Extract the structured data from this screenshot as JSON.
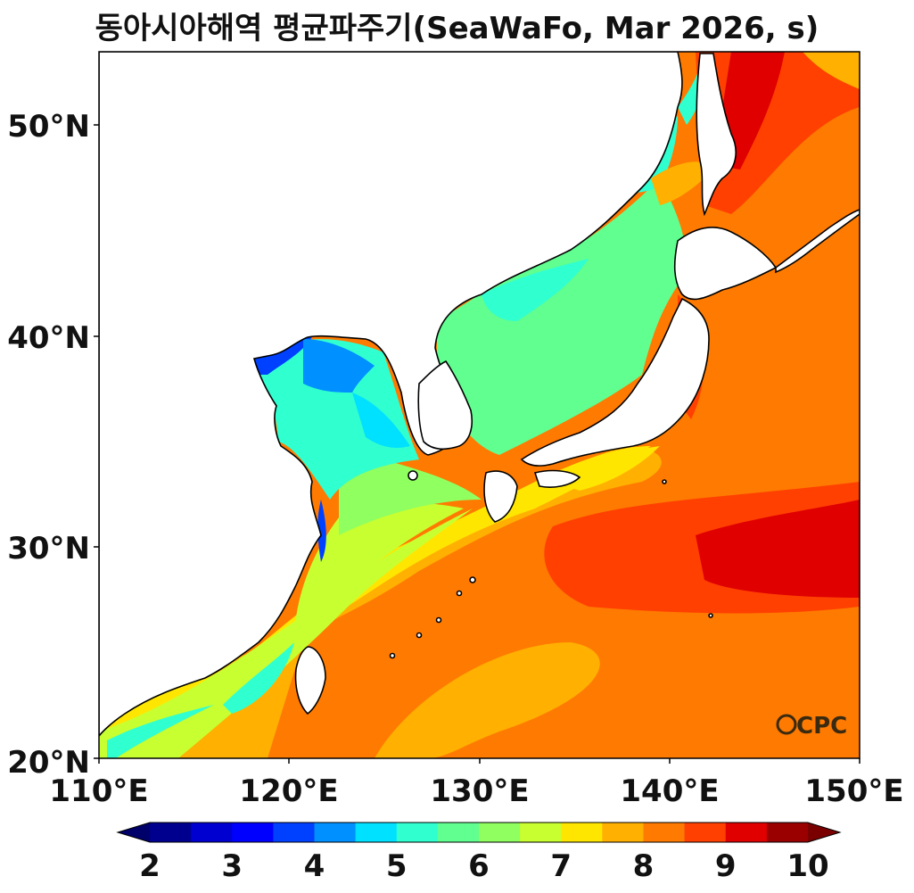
{
  "title": "동아시아해역 평균파주기(SeaWaFo, Mar 2026, s)",
  "map": {
    "lon_range": [
      110,
      150
    ],
    "lat_range": [
      20,
      53.3
    ],
    "lon_ticks": [
      "110°E",
      "120°E",
      "130°E",
      "140°E",
      "150°E"
    ],
    "lat_ticks": [
      "20°N",
      "30°N",
      "40°N",
      "50°N"
    ],
    "land_color": "#ffffff",
    "coastline_color": "#000000"
  },
  "colorbar": {
    "ticks": [
      "2",
      "3",
      "4",
      "5",
      "6",
      "7",
      "8",
      "9",
      "10"
    ],
    "extend": "both",
    "colors": [
      "#00008f",
      "#0000d0",
      "#0000ff",
      "#0040ff",
      "#0090ff",
      "#00e0ff",
      "#30ffd0",
      "#60ff90",
      "#90ff60",
      "#c8ff30",
      "#ffe600",
      "#ffb000",
      "#ff7a00",
      "#ff4000",
      "#e00000",
      "#9a0000"
    ],
    "under_color": "#00006a",
    "over_color": "#7a0000"
  },
  "logo": {
    "text": "CPC",
    "symbol": "O"
  }
}
